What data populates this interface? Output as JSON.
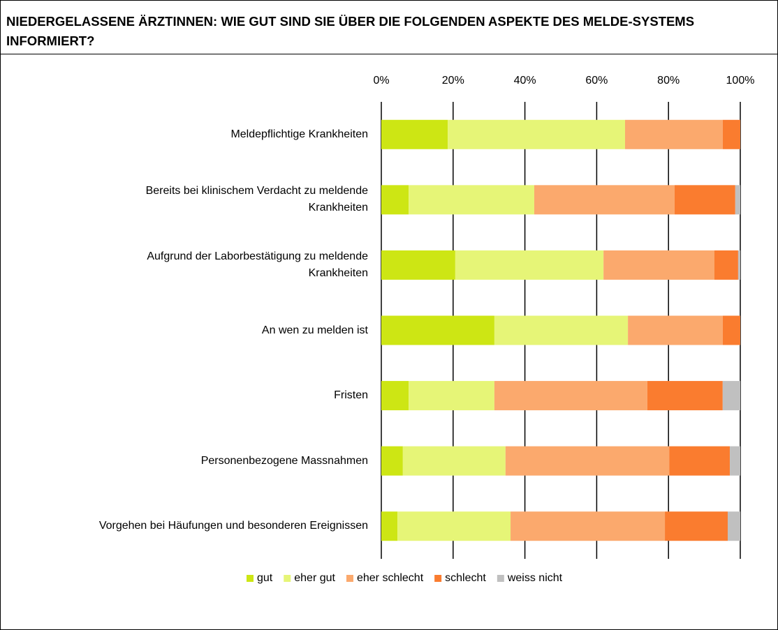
{
  "chart_data": {
    "type": "stacked-bar",
    "title": "NIEDERGELASSENE ÄRZTINNEN: WIE GUT SIND SIE ÜBER DIE FOLGENDEN ASPEKTE DES MELDE-SYSTEMS INFORMIERT?",
    "categories": [
      "Meldepflichtige Krankheiten",
      "Bereits bei klinischem Verdacht zu meldende\nKrankheiten",
      "Aufgrund der Laborbestätigung zu meldende\nKrankheiten",
      "An wen zu melden ist",
      "Fristen",
      "Personenbezogene Massnahmen",
      "Vorgehen bei Häufungen und besonderen Ereignissen"
    ],
    "series": [
      {
        "name": "gut",
        "color": "#cde614",
        "values": [
          18.5,
          7.6,
          20.6,
          31.5,
          7.6,
          6,
          4.5
        ]
      },
      {
        "name": "eher gut",
        "color": "#e6f577",
        "values": [
          49.4,
          35,
          41.3,
          37.2,
          23.9,
          28.6,
          31.5
        ]
      },
      {
        "name": "eher schlecht",
        "color": "#fba96d",
        "values": [
          27.2,
          39.1,
          30.9,
          26.4,
          42.6,
          45.6,
          43
        ]
      },
      {
        "name": "schlecht",
        "color": "#fa7c2f",
        "values": [
          4.9,
          16.9,
          6.6,
          4.9,
          21,
          16.9,
          17.5
        ]
      },
      {
        "name": "weiss nicht",
        "color": "#c0c0c0",
        "values": [
          0,
          1.4,
          0.6,
          0,
          4.9,
          2.9,
          3.5
        ]
      }
    ],
    "xlim": [
      0,
      100
    ],
    "xticks": [
      {
        "value": 0,
        "label": "0%"
      },
      {
        "value": 20,
        "label": "20%"
      },
      {
        "value": 40,
        "label": "40%"
      },
      {
        "value": 60,
        "label": "60%"
      },
      {
        "value": 80,
        "label": "80%"
      },
      {
        "value": 100,
        "label": "100%"
      }
    ],
    "grid": true,
    "legend": "bottom"
  }
}
